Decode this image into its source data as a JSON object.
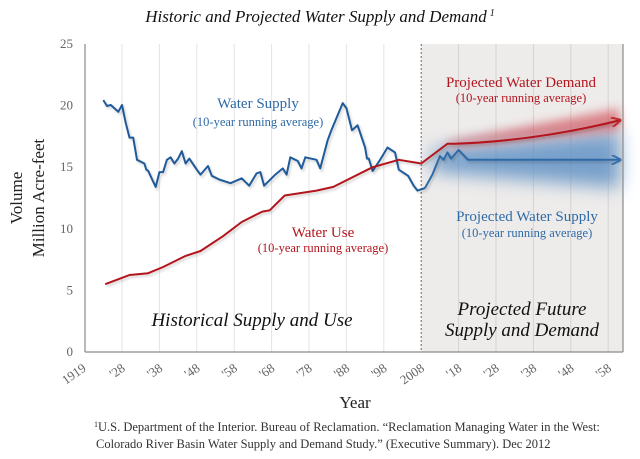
{
  "chart_data": {
    "type": "line",
    "title": "Historic and Projected Water Supply and Demand",
    "title_footnote_marker": "1",
    "xlabel": "Year",
    "ylabel_lines": [
      "Volume",
      "Million Acre-feet"
    ],
    "ylim": [
      0,
      25
    ],
    "yticks": [
      0,
      5,
      10,
      15,
      20,
      25
    ],
    "xlim": [
      1918,
      2062
    ],
    "xticks": [
      {
        "year": 1919,
        "label": "1919"
      },
      {
        "year": 1928,
        "label": "'28"
      },
      {
        "year": 1938,
        "label": "'38"
      },
      {
        "year": 1948,
        "label": "'48"
      },
      {
        "year": 1958,
        "label": "'58"
      },
      {
        "year": 1968,
        "label": "'68"
      },
      {
        "year": 1978,
        "label": "'78"
      },
      {
        "year": 1988,
        "label": "'88"
      },
      {
        "year": 1998,
        "label": "'98"
      },
      {
        "year": 2008,
        "label": "2008"
      },
      {
        "year": 2018,
        "label": "'18"
      },
      {
        "year": 2028,
        "label": "'28"
      },
      {
        "year": 2038,
        "label": "'38"
      },
      {
        "year": 2048,
        "label": "'48"
      },
      {
        "year": 2058,
        "label": "'58"
      }
    ],
    "grid": "vertical",
    "projection_start_year": 2008,
    "series": [
      {
        "name": "Water Supply",
        "subtitle": "(10-year running average)",
        "color": "#1f5a99",
        "points": [
          [
            1923,
            20.45
          ],
          [
            1924,
            19.97
          ],
          [
            1925,
            20.05
          ],
          [
            1927,
            19.5
          ],
          [
            1928,
            20.05
          ],
          [
            1929,
            18.6
          ],
          [
            1930,
            17.4
          ],
          [
            1931,
            17.4
          ],
          [
            1932,
            15.6
          ],
          [
            1934,
            15.3
          ],
          [
            1934.5,
            14.8
          ],
          [
            1935,
            14.7
          ],
          [
            1937,
            13.4
          ],
          [
            1938,
            14.6
          ],
          [
            1939,
            14.6
          ],
          [
            1940,
            15.6
          ],
          [
            1941,
            15.8
          ],
          [
            1942,
            15.3
          ],
          [
            1943,
            15.7
          ],
          [
            1944,
            16.3
          ],
          [
            1945,
            15.3
          ],
          [
            1946,
            15.7
          ],
          [
            1948,
            14.8
          ],
          [
            1949,
            14.4
          ],
          [
            1951,
            15.1
          ],
          [
            1952,
            14.3
          ],
          [
            1954,
            14.0
          ],
          [
            1957,
            13.7
          ],
          [
            1960,
            14.1
          ],
          [
            1962,
            13.5
          ],
          [
            1964,
            14.5
          ],
          [
            1965,
            14.6
          ],
          [
            1966,
            13.5
          ],
          [
            1969,
            14.4
          ],
          [
            1971,
            14.9
          ],
          [
            1972,
            14.4
          ],
          [
            1973,
            15.8
          ],
          [
            1975,
            15.5
          ],
          [
            1976,
            14.9
          ],
          [
            1977,
            15.8
          ],
          [
            1980,
            15.6
          ],
          [
            1981,
            14.9
          ],
          [
            1983,
            17.2
          ],
          [
            1984,
            18.0
          ],
          [
            1987,
            20.2
          ],
          [
            1988,
            19.8
          ],
          [
            1989.5,
            18.0
          ],
          [
            1991,
            18.4
          ],
          [
            1993,
            16.6
          ],
          [
            1993.5,
            15.7
          ],
          [
            1994,
            15.7
          ],
          [
            1995,
            14.7
          ],
          [
            1997,
            15.6
          ],
          [
            1999,
            16.6
          ],
          [
            2001,
            16.2
          ],
          [
            2002,
            14.8
          ],
          [
            2004.5,
            14.3
          ],
          [
            2006,
            13.5
          ],
          [
            2007,
            13.1
          ],
          [
            2009,
            13.3
          ]
        ]
      },
      {
        "name": "Projected Water Supply",
        "subtitle": "(10-year running average)",
        "color": "#2e6aa6",
        "points": [
          [
            2009,
            13.3
          ],
          [
            2011,
            14.4
          ],
          [
            2013,
            15.9
          ],
          [
            2014,
            15.6
          ],
          [
            2015,
            16.2
          ],
          [
            2016,
            15.7
          ],
          [
            2018,
            16.4
          ],
          [
            2020.5,
            15.6
          ],
          [
            2061,
            15.6
          ]
        ]
      },
      {
        "name": "Water Use",
        "subtitle": "(10-year running average)",
        "color": "#b3151d",
        "points": [
          [
            1923.5,
            5.5
          ],
          [
            1930,
            6.25
          ],
          [
            1935,
            6.4
          ],
          [
            1939,
            6.9
          ],
          [
            1945,
            7.8
          ],
          [
            1949,
            8.2
          ],
          [
            1955,
            9.4
          ],
          [
            1960,
            10.55
          ],
          [
            1965.5,
            11.4
          ],
          [
            1967.5,
            11.5
          ],
          [
            1971.5,
            12.7
          ],
          [
            1980,
            13.1
          ],
          [
            1984.5,
            13.4
          ],
          [
            1995,
            15.0
          ],
          [
            2002,
            15.6
          ],
          [
            2008,
            15.3
          ]
        ]
      },
      {
        "name": "Projected Water Demand",
        "subtitle": "(10-year running average)",
        "color": "#b3151d",
        "points": [
          [
            2008,
            15.3
          ],
          [
            2015,
            16.9
          ],
          [
            2017,
            16.9
          ],
          [
            2030,
            17.3
          ],
          [
            2045,
            17.9
          ],
          [
            2061,
            18.8
          ]
        ]
      }
    ],
    "annotations": {
      "historical_region": "Historical Supply and Use",
      "projected_region_line1": "Projected Future",
      "projected_region_line2": "Supply and Demand"
    }
  },
  "footnote": {
    "marker": "1",
    "line1": "U.S. Department of the Interior. Bureau of Reclamation. “Reclamation Managing Water in the West:",
    "line2": "Colorado River Basin Water Supply and Demand Study.” (Executive Summary). Dec 2012"
  }
}
